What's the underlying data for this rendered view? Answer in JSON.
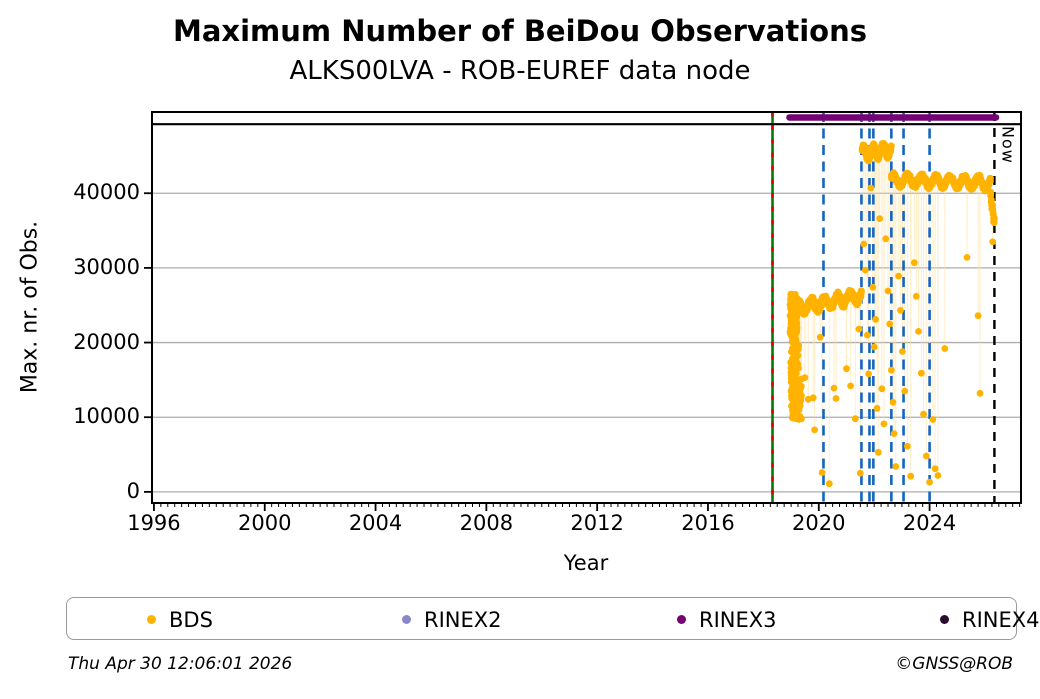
{
  "header": {
    "title": "Maximum Number of BeiDou Observations",
    "subtitle": "ALKS00LVA - ROB-EUREF data node"
  },
  "chart_data": {
    "type": "scatter",
    "title": "Maximum Number of BeiDou Observations",
    "subtitle": "ALKS00LVA - ROB-EUREF data node",
    "xlabel": "Year",
    "ylabel": "Max. nr. of Obs.",
    "xlim": [
      1995.93,
      2027.3
    ],
    "ylim": [
      -1490,
      50880
    ],
    "xticks": [
      1996,
      2000,
      2004,
      2008,
      2012,
      2016,
      2020,
      2024
    ],
    "x_minor_interval": 0.25,
    "yticks": [
      0,
      10000,
      20000,
      30000,
      40000
    ],
    "grid": "horizontal",
    "grid_color": "#adadad",
    "now_line": {
      "x": 2026.34,
      "label": "Now",
      "color": "#000000",
      "style": "dashed"
    },
    "station_line": {
      "x": 2018.33,
      "solid_color": "#007d00",
      "dash_color": "#e00000"
    },
    "equipment_change_lines": {
      "color": "#1565c0",
      "style": "dashed",
      "x": [
        2020.17,
        2021.54,
        2021.83,
        2021.97,
        2022.62,
        2023.06,
        2024.0
      ]
    },
    "rinex3_bar": {
      "x0": 2018.94,
      "x1": 2026.4,
      "y": 50150,
      "color": "#740274"
    },
    "top_rule": {
      "y": 49250,
      "color": "#000000"
    },
    "series": [
      {
        "name": "BDS",
        "color": "#FFB300",
        "marker": "circle",
        "marker_radius": 3.4,
        "connector_color": "rgba(255,224,156,0.55)",
        "clusters": [
          {
            "kind": "blob",
            "x0": 2018.96,
            "x1": 2019.22,
            "n": 130,
            "ymin": 21000,
            "ymax": 26500
          },
          {
            "kind": "blob",
            "x0": 2018.98,
            "x1": 2019.28,
            "n": 55,
            "ymin": 15000,
            "ymax": 21000
          },
          {
            "kind": "blob",
            "x0": 2019.0,
            "x1": 2019.38,
            "n": 90,
            "ymin": 9600,
            "ymax": 15200
          },
          {
            "kind": "band",
            "x0": 2019.2,
            "x1": 2021.54,
            "n": 520,
            "c0": 24600,
            "c1": 26300,
            "amp": 700,
            "spread": 650,
            "freq": 5
          },
          {
            "kind": "band",
            "x0": 2021.56,
            "x1": 2022.62,
            "n": 280,
            "c0": 45300,
            "c1": 45800,
            "amp": 800,
            "spread": 600,
            "freq": 3
          },
          {
            "kind": "band",
            "x0": 2022.62,
            "x1": 2026.2,
            "n": 760,
            "c0": 41800,
            "c1": 41400,
            "amp": 650,
            "spread": 550,
            "freq": 7
          },
          {
            "kind": "band",
            "x0": 2026.2,
            "x1": 2026.34,
            "n": 26,
            "c0": 39800,
            "c1": 36200,
            "amp": 400,
            "spread": 700,
            "freq": 2
          }
        ],
        "outliers": [
          [
            2019.5,
            15300
          ],
          [
            2019.62,
            12400
          ],
          [
            2019.8,
            12600
          ],
          [
            2019.85,
            8300
          ],
          [
            2020.05,
            20700
          ],
          [
            2020.12,
            2600
          ],
          [
            2020.38,
            1100
          ],
          [
            2020.55,
            13900
          ],
          [
            2020.62,
            12500
          ],
          [
            2021.0,
            16500
          ],
          [
            2021.15,
            14200
          ],
          [
            2021.32,
            9800
          ],
          [
            2021.45,
            21800
          ],
          [
            2021.5,
            2500
          ],
          [
            2021.62,
            33200
          ],
          [
            2021.68,
            29700
          ],
          [
            2021.75,
            21000
          ],
          [
            2021.8,
            15800
          ],
          [
            2021.88,
            40700
          ],
          [
            2021.95,
            27400
          ],
          [
            2022.0,
            19400
          ],
          [
            2022.05,
            23100
          ],
          [
            2022.1,
            11200
          ],
          [
            2022.15,
            5300
          ],
          [
            2022.2,
            36600
          ],
          [
            2022.28,
            13800
          ],
          [
            2022.35,
            9100
          ],
          [
            2022.42,
            33900
          ],
          [
            2022.5,
            26900
          ],
          [
            2022.56,
            22500
          ],
          [
            2022.62,
            16300
          ],
          [
            2022.68,
            12000
          ],
          [
            2022.72,
            7800
          ],
          [
            2022.78,
            3400
          ],
          [
            2022.88,
            28900
          ],
          [
            2022.95,
            24300
          ],
          [
            2023.02,
            18800
          ],
          [
            2023.1,
            13500
          ],
          [
            2023.2,
            6100
          ],
          [
            2023.32,
            2100
          ],
          [
            2023.45,
            30700
          ],
          [
            2023.52,
            26200
          ],
          [
            2023.6,
            21500
          ],
          [
            2023.7,
            15900
          ],
          [
            2023.78,
            10400
          ],
          [
            2023.88,
            4800
          ],
          [
            2024.0,
            1300
          ],
          [
            2024.12,
            9700
          ],
          [
            2024.2,
            3100
          ],
          [
            2024.3,
            2200
          ],
          [
            2024.55,
            19200
          ],
          [
            2025.35,
            31400
          ],
          [
            2025.75,
            23600
          ],
          [
            2025.82,
            13200
          ],
          [
            2026.28,
            33500
          ]
        ]
      },
      {
        "name": "RINEX2",
        "color": "#8888c8",
        "visible_points": 0
      },
      {
        "name": "RINEX3",
        "color": "#740274",
        "rendered_as": "top-bar"
      },
      {
        "name": "RINEX4",
        "color": "#2a0a2e",
        "visible_points": 0
      }
    ]
  },
  "legend": {
    "entries": [
      {
        "label": "BDS",
        "color": "#FFB300"
      },
      {
        "label": "RINEX2",
        "color": "#8888c8"
      },
      {
        "label": "RINEX3",
        "color": "#740274"
      },
      {
        "label": "RINEX4",
        "color": "#2a0a2e"
      }
    ]
  },
  "footer": {
    "timestamp": "Thu Apr 30 12:06:01 2026",
    "credit": "©GNSS@ROB"
  }
}
